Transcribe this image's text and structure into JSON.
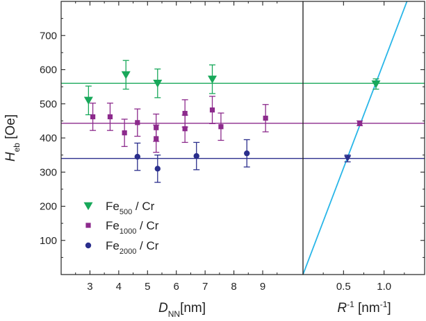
{
  "chart_data": [
    {
      "type": "scatter",
      "xlabel": {
        "main": "D",
        "sub": "NN",
        "rest": "[nm]"
      },
      "ylabel": {
        "main": "H",
        "sub": "eb",
        "rest": " [Oe]"
      },
      "xlim": [
        2,
        10.4
      ],
      "ylim": [
        0,
        800
      ],
      "xticks": [
        "3",
        "4",
        "5",
        "6",
        "7",
        "8",
        "9"
      ],
      "yticks": [
        "100",
        "200",
        "300",
        "400",
        "500",
        "600",
        "700"
      ],
      "grid": false,
      "legend_position": "lower-left",
      "series": [
        {
          "name": {
            "main": "Fe",
            "sub": "500",
            "rest": " / Cr"
          },
          "marker": "triangle-down",
          "color": "#18a85a",
          "points": [
            {
              "x": 2.95,
              "y": 510,
              "err": 42
            },
            {
              "x": 4.25,
              "y": 585,
              "err": 42
            },
            {
              "x": 5.35,
              "y": 560,
              "err": 42
            },
            {
              "x": 7.25,
              "y": 572,
              "err": 42
            }
          ],
          "reference_level": 560
        },
        {
          "name": {
            "main": "Fe",
            "sub": "1000",
            "rest": " / Cr"
          },
          "marker": "square",
          "color": "#8c2a8c",
          "points": [
            {
              "x": 3.1,
              "y": 462,
              "err": 40
            },
            {
              "x": 3.7,
              "y": 462,
              "err": 40
            },
            {
              "x": 4.2,
              "y": 415,
              "err": 40
            },
            {
              "x": 4.65,
              "y": 445,
              "err": 40
            },
            {
              "x": 5.3,
              "y": 430,
              "err": 40
            },
            {
              "x": 5.3,
              "y": 398,
              "err": 40
            },
            {
              "x": 6.3,
              "y": 472,
              "err": 40
            },
            {
              "x": 6.3,
              "y": 427,
              "err": 40
            },
            {
              "x": 7.25,
              "y": 482,
              "err": 40
            },
            {
              "x": 7.55,
              "y": 433,
              "err": 40
            },
            {
              "x": 9.1,
              "y": 458,
              "err": 40
            }
          ],
          "reference_level": 443
        },
        {
          "name": {
            "main": "Fe",
            "sub": "2000",
            "rest": " / Cr"
          },
          "marker": "circle",
          "color": "#2a2e8c",
          "points": [
            {
              "x": 4.65,
              "y": 345,
              "err": 40
            },
            {
              "x": 5.35,
              "y": 310,
              "err": 40
            },
            {
              "x": 6.7,
              "y": 347,
              "err": 40
            },
            {
              "x": 8.45,
              "y": 355,
              "err": 40
            }
          ],
          "reference_level": 340
        }
      ]
    },
    {
      "type": "scatter",
      "xlabel": {
        "main": "R",
        "sup": "-1",
        "rest": " [nm",
        "rest_sup": "-1",
        "close": "]"
      },
      "xlim": [
        0,
        1.5
      ],
      "ylim": [
        0,
        800
      ],
      "xticks": [
        "0.5",
        "1.0"
      ],
      "grid": false,
      "points": [
        {
          "x": 0.55,
          "y": 340,
          "err": 10,
          "color": "#2a2e8c",
          "marker": "triangle-down-small"
        },
        {
          "x": 0.7,
          "y": 443,
          "err": 7,
          "color": "#8c2a8c",
          "marker": "square"
        },
        {
          "x": 0.9,
          "y": 558,
          "err": 15,
          "color": "#18a85a",
          "marker": "triangle-down"
        }
      ],
      "fit_line": {
        "color": "#29b6e8",
        "x0": 0.0,
        "y0": 0,
        "slope": 624
      },
      "reference_levels": [
        {
          "y": 560,
          "color": "#18a85a"
        },
        {
          "y": 443,
          "color": "#8c2a8c"
        },
        {
          "y": 340,
          "color": "#2a2e8c"
        }
      ]
    }
  ]
}
